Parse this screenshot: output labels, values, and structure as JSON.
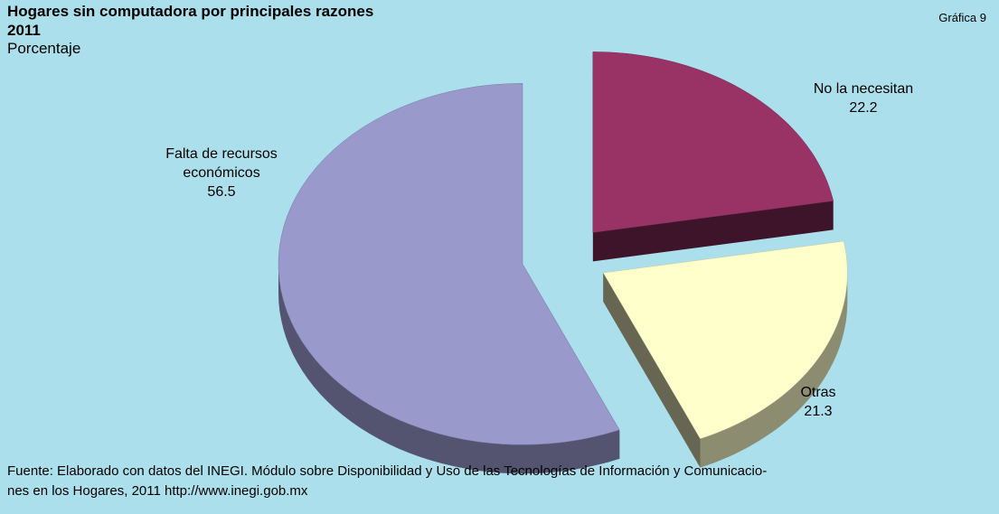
{
  "chart_data": {
    "type": "pie",
    "title": "Hogares sin computadora por principales razones",
    "subtitle": "2011",
    "unit_label": "Porcentaje",
    "figure_label": "Gráfica 9",
    "categories": [
      "No la necesitan",
      "Otras",
      "Falta de recursos económicos"
    ],
    "values": [
      22.2,
      21.3,
      56.5
    ],
    "colors": [
      "#993366",
      "#ffffcc",
      "#9999cc"
    ],
    "source": [
      "Fuente: Elaborado con datos del INEGI. Módulo sobre Disponibilidad y Uso de las Tecnologías de Información y Comunicacio-",
      "nes en los Hogares, 2011 http://www.inegi.gob.mx"
    ]
  }
}
